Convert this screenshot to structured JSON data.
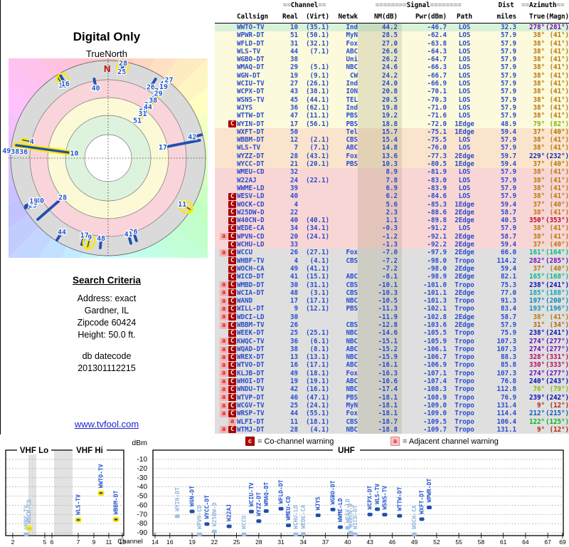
{
  "polar_panel": {
    "title": "Digital Only",
    "orientation_label": "TrueNorth",
    "north_marker": "N"
  },
  "search_criteria": {
    "heading": "Search Criteria",
    "lines": [
      "Address: exact",
      "Gardner, IL",
      "Zipcode 60424",
      "Height: 50.0 ft."
    ],
    "db_label": "db datecode",
    "db_code": "201301112215"
  },
  "link": {
    "text": "www.tvfool.com"
  },
  "legend": {
    "co_icon": "c",
    "co_text": "= Co-channel warning",
    "adj_icon": "a",
    "adj_text": "= Adjacent channel warning"
  },
  "colors": {
    "data_blue": "#2b4fcc",
    "bar_dark": "#1f4faf",
    "bar_light": "#9fc0e8",
    "row_green": "#d9f2d9",
    "row_yellow": "#fcfadc",
    "row_peach": "#fae4cd",
    "row_pink": "#f9d6d6",
    "row_gray": "#dfdfdf",
    "warn_co_bg": "#a80000",
    "warn_adj_bg": "#f5b0b0",
    "highlight_yellow": "#ffe800"
  },
  "table": {
    "header": {
      "channel_eq": "==",
      "channel": "Channel",
      "signal_eq": "========",
      "signal": "Signal",
      "dist": "Dist",
      "azimuth_eq": "==",
      "azimuth": "Azimuth",
      "cols": [
        "Callsign",
        "Real",
        "(Virt)",
        "Netwk",
        "NM(dB)",
        "Pwr(dBm)",
        "Path",
        "miles",
        "True",
        "(Magn)"
      ]
    },
    "rows": [
      [
        "",
        "WWTO-TV",
        "10",
        "(35.1)",
        "Ind",
        "44.2",
        "-46.7",
        "LOS",
        "32.3",
        "278°",
        "(281°)"
      ],
      [
        "",
        "WPWR-DT",
        "51",
        "(50.1)",
        "MyN",
        "28.5",
        "-62.4",
        "LOS",
        "57.9",
        "38°",
        "(41°)"
      ],
      [
        "",
        "WFLD-DT",
        "31",
        "(32.1)",
        "Fox",
        "27.0",
        "-63.8",
        "LOS",
        "57.9",
        "38°",
        "(41°)"
      ],
      [
        "",
        "WLS-TV",
        "44",
        "(7.1)",
        "ABC",
        "26.6",
        "-64.3",
        "LOS",
        "57.9",
        "38°",
        "(41°)"
      ],
      [
        "",
        "WGBO-DT",
        "38",
        "",
        "Uni",
        "26.2",
        "-64.7",
        "LOS",
        "57.9",
        "38°",
        "(41°)"
      ],
      [
        "",
        "WMAQ-DT",
        "29",
        "(5.1)",
        "NBC",
        "24.6",
        "-66.3",
        "LOS",
        "57.9",
        "38°",
        "(41°)"
      ],
      [
        "",
        "WGN-DT",
        "19",
        "(9.1)",
        "CW",
        "24.2",
        "-66.7",
        "LOS",
        "57.9",
        "38°",
        "(41°)"
      ],
      [
        "",
        "WCIU-TV",
        "27",
        "(26.1)",
        "Ind",
        "24.0",
        "-66.9",
        "LOS",
        "57.9",
        "38°",
        "(41°)"
      ],
      [
        "",
        "WCPX-DT",
        "43",
        "(38.1)",
        "ION",
        "20.8",
        "-70.1",
        "LOS",
        "57.9",
        "38°",
        "(41°)"
      ],
      [
        "",
        "WSNS-TV",
        "45",
        "(44.1)",
        "TEL",
        "20.5",
        "-70.3",
        "LOS",
        "57.9",
        "38°",
        "(41°)"
      ],
      [
        "",
        "WJYS",
        "36",
        "(62.1)",
        "Ind",
        "19.8",
        "-71.0",
        "LOS",
        "57.9",
        "38°",
        "(41°)"
      ],
      [
        "",
        "WTTW-DT",
        "47",
        "(11.1)",
        "PBS",
        "19.2",
        "-71.6",
        "LOS",
        "57.9",
        "38°",
        "(41°)"
      ],
      [
        "C",
        "WYIN-DT",
        "17",
        "(56.1)",
        "PBS",
        "18.8",
        "-72.0",
        "1Edge",
        "48.9",
        "79°",
        "(82°)"
      ],
      [
        "",
        "WXFT-DT",
        "50",
        "",
        "Tel",
        "15.7",
        "-75.1",
        "1Edge",
        "59.4",
        "37°",
        "(40°)"
      ],
      [
        "",
        "WBBM-DT",
        "12",
        "(2.1)",
        "CBS",
        "15.4",
        "-75.5",
        "LOS",
        "57.9",
        "38°",
        "(41°)"
      ],
      [
        "",
        "WLS-TV",
        "7",
        "(7.1)",
        "ABC",
        "14.8",
        "-76.0",
        "LOS",
        "57.9",
        "38°",
        "(41°)"
      ],
      [
        "",
        "WYZZ-DT",
        "28",
        "(43.1)",
        "Fox",
        "13.6",
        "-77.3",
        "2Edge",
        "59.7",
        "229°",
        "(232°)"
      ],
      [
        "",
        "WYCC-DT",
        "21",
        "(20.1)",
        "PBS",
        "10.3",
        "-80.5",
        "1Edge",
        "59.4",
        "37°",
        "(40°)"
      ],
      [
        "",
        "WMEU-CD",
        "32",
        "",
        "",
        "8.9",
        "-81.9",
        "LOS",
        "57.9",
        "38°",
        "(41°)"
      ],
      [
        "",
        "W22AJ",
        "24",
        "(22.1)",
        "",
        "7.8",
        "-83.0",
        "LOS",
        "57.9",
        "38°",
        "(41°)"
      ],
      [
        "",
        "WWME-LD",
        "39",
        "",
        "",
        "6.9",
        "-83.9",
        "LOS",
        "57.9",
        "38°",
        "(41°)"
      ],
      [
        "C",
        "WESV-LD",
        "40",
        "",
        "",
        "6.2",
        "-84.6",
        "LOS",
        "57.9",
        "38°",
        "(41°)"
      ],
      [
        "C",
        "WOCK-CD",
        "4",
        "",
        "",
        "5.6",
        "-85.3",
        "1Edge",
        "59.4",
        "37°",
        "(40°)"
      ],
      [
        "C",
        "W25DW-D",
        "22",
        "",
        "",
        "2.3",
        "-88.6",
        "2Edge",
        "58.7",
        "38°",
        "(41°)"
      ],
      [
        "C",
        "W40CN-D",
        "40",
        "(40.1)",
        "",
        "1.1",
        "-89.8",
        "2Edge",
        "40.5",
        "350°",
        "(353°)"
      ],
      [
        "C",
        "WEDE-CA",
        "34",
        "(34.1)",
        "",
        "-0.3",
        "-91.2",
        "LOS",
        "57.9",
        "38°",
        "(41°)"
      ],
      [
        "aC",
        "WPVN-CD",
        "20",
        "(24.1)",
        "",
        "-1.2",
        "-92.1",
        "2Edge",
        "58.7",
        "38°",
        "(41°)"
      ],
      [
        "C",
        "WCHU-LD",
        "33",
        "",
        "",
        "-1.3",
        "-92.2",
        "2Edge",
        "59.4",
        "37°",
        "(40°)"
      ],
      [
        "aC",
        "WCCU",
        "26",
        "(27.1)",
        "Fox",
        "-7.0",
        "-97.9",
        "2Edge",
        "66.0",
        "161°",
        "(164°)"
      ],
      [
        "C",
        "WHBF-TV",
        "4",
        "(4.1)",
        "CBS",
        "-7.2",
        "-98.0",
        "Tropo",
        "114.2",
        "282°",
        "(285°)"
      ],
      [
        "C",
        "WOCH-CA",
        "49",
        "(41.1)",
        "",
        "-7.2",
        "-98.0",
        "2Edge",
        "59.4",
        "37°",
        "(40°)"
      ],
      [
        "C",
        "WICD-DT",
        "41",
        "(15.1)",
        "ABC",
        "-8.1",
        "-98.9",
        "2Edge",
        "82.1",
        "165°",
        "(168°)"
      ],
      [
        "aC",
        "WMBD-DT",
        "30",
        "(31.1)",
        "CBS",
        "-10.1",
        "-101.0",
        "Tropo",
        "75.3",
        "238°",
        "(241°)"
      ],
      [
        "aC",
        "WCIA-DT",
        "48",
        "(3.1)",
        "CBS",
        "-10.3",
        "-101.1",
        "2Edge",
        "77.0",
        "185°",
        "(188°)"
      ],
      [
        "aC",
        "WAND",
        "17",
        "(17.1)",
        "NBC",
        "-10.5",
        "-101.3",
        "Tropo",
        "91.3",
        "197°",
        "(200°)"
      ],
      [
        "aC",
        "WILL-DT",
        "9",
        "(12.1)",
        "PBS",
        "-11.3",
        "-102.1",
        "Tropo",
        "83.4",
        "193°",
        "(196°)"
      ],
      [
        "aC",
        "WDCI-LD",
        "30",
        "",
        "",
        "-11.9",
        "-102.8",
        "2Edge",
        "58.7",
        "38°",
        "(41°)"
      ],
      [
        "aC",
        "WBBM-TV",
        "26",
        "",
        "CBS",
        "-12.8",
        "-103.6",
        "2Edge",
        "57.9",
        "31°",
        "(34°)"
      ],
      [
        "C",
        "WEEK-DT",
        "25",
        "(25.1)",
        "NBC",
        "-14.6",
        "-105.5",
        "Tropo",
        "75.9",
        "238°",
        "(241°)"
      ],
      [
        "aC",
        "KWQC-TV",
        "36",
        "(6.1)",
        "NBC",
        "-15.1",
        "-105.9",
        "Tropo",
        "107.3",
        "274°",
        "(277°)"
      ],
      [
        "aC",
        "WQAD-DT",
        "38",
        "(8.1)",
        "ABC",
        "-15.2",
        "-106.1",
        "Tropo",
        "107.3",
        "274°",
        "(277°)"
      ],
      [
        "aC",
        "WREX-DT",
        "13",
        "(13.1)",
        "NBC",
        "-15.9",
        "-106.7",
        "Tropo",
        "88.3",
        "328°",
        "(331°)"
      ],
      [
        "aC",
        "WTVO-DT",
        "16",
        "(17.1)",
        "ABC",
        "-16.1",
        "-106.9",
        "Tropo",
        "85.8",
        "330°",
        "(333°)"
      ],
      [
        "aC",
        "KLJB-DT",
        "49",
        "(18.1)",
        "Fox",
        "-16.3",
        "-107.1",
        "Tropo",
        "107.3",
        "274°",
        "(277°)"
      ],
      [
        "aC",
        "WHOI-DT",
        "19",
        "(19.1)",
        "ABC",
        "-16.6",
        "-107.4",
        "Tropo",
        "76.8",
        "240°",
        "(243°)"
      ],
      [
        "aC",
        "WNDU-TV",
        "42",
        "(16.1)",
        "NBC",
        "-17.4",
        "-108.3",
        "Tropo",
        "112.8",
        "76°",
        "(79°)"
      ],
      [
        "aC",
        "WTVP-DT",
        "46",
        "(47.1)",
        "PBS",
        "-18.1",
        "-108.9",
        "Tropo",
        "76.9",
        "239°",
        "(242°)"
      ],
      [
        "aC",
        "WCGV-TV",
        "25",
        "(24.1)",
        "MyN",
        "-18.1",
        "-109.0",
        "Tropo",
        "131.4",
        "9°",
        "(12°)"
      ],
      [
        "aC",
        "WRSP-TV",
        "44",
        "(55.1)",
        "Fox",
        "-18.1",
        "-109.0",
        "Tropo",
        "114.4",
        "212°",
        "(215°)"
      ],
      [
        "a",
        "WLFI-DT",
        "11",
        "(18.1)",
        "CBS",
        "-18.7",
        "-109.5",
        "Tropo",
        "106.4",
        "122°",
        "(125°)"
      ],
      [
        "aC",
        "WTMJ-DT",
        "28",
        "(4.1)",
        "NBC",
        "-18.8",
        "-109.7",
        "Tropo",
        "131.1",
        "9°",
        "(12°)"
      ]
    ]
  },
  "chart_data": [
    {
      "type": "polar",
      "title": "Digital Only",
      "orientation": "TrueNorth",
      "rings_inner_to_outer": [
        "white",
        "green",
        "yellow",
        "pink",
        "gray",
        "azimuth-hue-wheel"
      ],
      "point_format": [
        "channel",
        "azimuth_true_deg",
        "noise_margin_db"
      ],
      "points": [
        [
          10,
          278,
          44.2
        ],
        [
          51,
          38,
          28.5
        ],
        [
          31,
          38,
          27.0
        ],
        [
          44,
          38,
          26.6
        ],
        [
          38,
          38,
          26.2
        ],
        [
          29,
          38,
          24.6
        ],
        [
          19,
          38,
          24.2
        ],
        [
          27,
          38,
          24.0
        ],
        [
          43,
          38,
          20.8
        ],
        [
          45,
          38,
          20.5
        ],
        [
          36,
          38,
          19.8
        ],
        [
          47,
          38,
          19.2
        ],
        [
          17,
          79,
          18.8
        ],
        [
          50,
          37,
          15.7
        ],
        [
          12,
          38,
          15.4
        ],
        [
          7,
          38,
          14.8
        ],
        [
          28,
          229,
          13.6
        ],
        [
          21,
          37,
          10.3
        ],
        [
          32,
          38,
          8.9
        ],
        [
          24,
          38,
          7.8
        ],
        [
          39,
          38,
          6.9
        ],
        [
          40,
          38,
          6.2
        ],
        [
          4,
          37,
          5.6
        ],
        [
          22,
          38,
          2.3
        ],
        [
          40,
          350,
          1.1
        ],
        [
          34,
          38,
          -0.3
        ],
        [
          20,
          38,
          -1.2
        ],
        [
          33,
          37,
          -1.3
        ],
        [
          26,
          161,
          -7.0
        ],
        [
          4,
          282,
          -7.2
        ],
        [
          49,
          37,
          -7.2
        ],
        [
          41,
          165,
          -8.1
        ],
        [
          30,
          238,
          -10.1
        ],
        [
          48,
          185,
          -10.3
        ],
        [
          17,
          197,
          -10.5
        ],
        [
          9,
          193,
          -11.3
        ],
        [
          30,
          38,
          -11.9
        ],
        [
          26,
          31,
          -12.8
        ],
        [
          25,
          238,
          -14.6
        ],
        [
          36,
          274,
          -15.1
        ],
        [
          38,
          274,
          -15.2
        ],
        [
          13,
          328,
          -15.9
        ],
        [
          16,
          330,
          -16.1
        ],
        [
          49,
          274,
          -16.3
        ],
        [
          19,
          240,
          -16.6
        ],
        [
          42,
          76,
          -17.4
        ],
        [
          46,
          239,
          -18.1
        ],
        [
          25,
          9,
          -18.1
        ],
        [
          44,
          212,
          -18.1
        ],
        [
          11,
          122,
          -18.7
        ],
        [
          28,
          9,
          -18.8
        ]
      ],
      "circled_channels": [
        [
          28,
          9
        ],
        [
          16,
          330
        ],
        [
          9,
          193
        ],
        [
          11,
          122
        ]
      ]
    },
    {
      "type": "scatter",
      "xlabel": "Channel",
      "ylabel": "dBm",
      "ylim": [
        -90,
        -10
      ],
      "yticks": [
        -10,
        -20,
        -30,
        -40,
        -50,
        -60,
        -70,
        -80,
        -90
      ],
      "panels": [
        "VHF Lo",
        "VHF Hi",
        "UHF"
      ],
      "left_ticks": [
        2,
        5,
        6,
        7,
        9,
        11,
        13
      ],
      "right_ticks": [
        14,
        16,
        19,
        22,
        25,
        28,
        31,
        34,
        37,
        40,
        43,
        46,
        49,
        52,
        55,
        58,
        61,
        64,
        67,
        69
      ],
      "point_format": [
        "station",
        "channel",
        "power_dbm",
        "weak_shade",
        "yellow_ring"
      ],
      "points": [
        [
          "WHBF-TV",
          4,
          -98.0,
          1,
          0
        ],
        [
          "WOCK-CD",
          4,
          -85.3,
          1,
          1
        ],
        [
          "WLS-TV",
          7,
          -76.0,
          0,
          1
        ],
        [
          "WWTO-TV",
          10,
          -46.7,
          0,
          1
        ],
        [
          "WBBM-DT",
          12,
          -75.5,
          0,
          1
        ],
        [
          "WYIN-DT",
          17,
          -72.0,
          1,
          0
        ],
        [
          "WGN-DT",
          19,
          -66.7,
          0,
          0
        ],
        [
          "WPVN-CD",
          20,
          -92.1,
          1,
          0
        ],
        [
          "WYCC-DT",
          21,
          -80.5,
          0,
          0
        ],
        [
          "W25DW-D",
          22,
          -88.6,
          1,
          0
        ],
        [
          "W22AJ",
          24,
          -83.0,
          0,
          0
        ],
        [
          "WCCU",
          26,
          -97.9,
          1,
          0
        ],
        [
          "WCIU-TV",
          27,
          -66.9,
          0,
          0
        ],
        [
          "WYZZ-DT",
          28,
          -77.3,
          0,
          0
        ],
        [
          "WMAQ-DT",
          29,
          -66.3,
          0,
          0
        ],
        [
          "WFLD-DT",
          31,
          -63.8,
          0,
          0
        ],
        [
          "WMEU-CD",
          32,
          -81.9,
          0,
          0
        ],
        [
          "WCHU-LD",
          33,
          -92.2,
          1,
          0
        ],
        [
          "WEDE-CA",
          34,
          -91.2,
          1,
          0
        ],
        [
          "WJYS",
          36,
          -71.0,
          0,
          0
        ],
        [
          "WGBO-DT",
          38,
          -64.7,
          0,
          0
        ],
        [
          "WWME-LD",
          39,
          -83.9,
          0,
          0
        ],
        [
          "WESV-LD",
          40,
          -84.6,
          1,
          0
        ],
        [
          "W40CN-D",
          40,
          -89.8,
          1,
          0
        ],
        [
          "WICD-DT",
          41,
          -98.9,
          1,
          0
        ],
        [
          "WCPX-DT",
          43,
          -70.1,
          0,
          0
        ],
        [
          "WLS-TV",
          44,
          -64.3,
          0,
          0
        ],
        [
          "WSNS-TV",
          45,
          -70.3,
          0,
          0
        ],
        [
          "WTTW-DT",
          47,
          -71.6,
          0,
          0
        ],
        [
          "WOCH-CA",
          49,
          -98.0,
          1,
          0
        ],
        [
          "WXFT-DT",
          50,
          -75.1,
          0,
          0
        ],
        [
          "WPWR-DT",
          51,
          -62.4,
          0,
          0
        ]
      ]
    }
  ]
}
